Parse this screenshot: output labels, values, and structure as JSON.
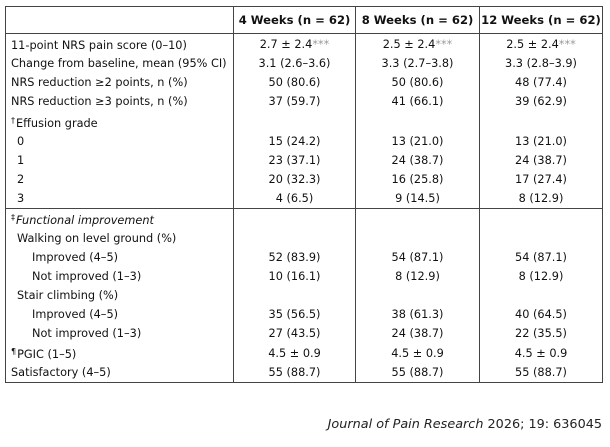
{
  "columns": [
    "",
    "4 Weeks (n = 62)",
    "8 Weeks (n = 62)",
    "12 Weeks (n = 62)"
  ],
  "rows": [
    {
      "label": "11-point NRS pain score (0–10)",
      "v": [
        "2.7 ± 2.4",
        "2.5 ± 2.4",
        "2.5 ± 2.4"
      ],
      "sig": [
        "***",
        "***",
        "***"
      ]
    },
    {
      "label": "Change from baseline, mean (95% CI)",
      "v": [
        "3.1 (2.6–3.6)",
        "3.3 (2.7–3.8)",
        "3.3 (2.8–3.9)"
      ]
    },
    {
      "label": "NRS reduction ≥2 points, n (%)",
      "v": [
        "50 (80.6)",
        "50 (80.6)",
        "48 (77.4)"
      ]
    },
    {
      "label": "NRS reduction ≥3 points, n (%)",
      "v": [
        "37 (59.7)",
        "41 (66.1)",
        "39 (62.9)"
      ]
    },
    {
      "label": "Effusion grade",
      "mark": "†"
    },
    {
      "label": "0",
      "v": [
        "15 (24.2)",
        "13 (21.0)",
        "13 (21.0)"
      ]
    },
    {
      "label": "1",
      "v": [
        "23 (37.1)",
        "24 (38.7)",
        "24 (38.7)"
      ]
    },
    {
      "label": "2",
      "v": [
        "20 (32.3)",
        "16 (25.8)",
        "17 (27.4)"
      ]
    },
    {
      "label": "3",
      "v": [
        "4 (6.5)",
        "9 (14.5)",
        "8 (12.9)"
      ]
    },
    {
      "label": "Functional improvement",
      "mark": "‡"
    },
    {
      "label": "Walking on level ground (%)"
    },
    {
      "label": "Improved (4–5)",
      "v": [
        "52 (83.9)",
        "54 (87.1)",
        "54 (87.1)"
      ]
    },
    {
      "label": "Not improved (1–3)",
      "v": [
        "10 (16.1)",
        "8 (12.9)",
        "8 (12.9)"
      ]
    },
    {
      "label": "Stair climbing (%)"
    },
    {
      "label": "Improved (4–5)",
      "v": [
        "35 (56.5)",
        "38 (61.3)",
        "40 (64.5)"
      ]
    },
    {
      "label": "Not improved (1–3)",
      "v": [
        "27 (43.5)",
        "24 (38.7)",
        "22 (35.5)"
      ]
    },
    {
      "label": "PGIC (1–5)",
      "mark": "¶",
      "v": [
        "4.5 ± 0.9",
        "4.5 ± 0.9",
        "4.5 ± 0.9"
      ]
    },
    {
      "label": "Satisfactory (4–5)",
      "v": [
        "55 (88.7)",
        "55 (88.7)",
        "55 (88.7)"
      ]
    }
  ],
  "citation": {
    "journal": "Journal of Pain Research",
    "rest": " 2026; 19: 636045"
  }
}
